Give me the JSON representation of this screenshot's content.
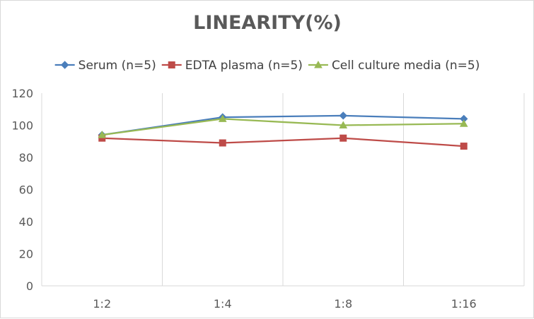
{
  "chart_data": {
    "type": "line",
    "title": "LINEARITY(%)",
    "xlabel": "",
    "ylabel": "",
    "categories": [
      "1:2",
      "1:4",
      "1:8",
      "1:16"
    ],
    "ylim": [
      0,
      120
    ],
    "yticks": [
      0,
      20,
      40,
      60,
      80,
      100,
      120
    ],
    "grid": "vertical",
    "legend_position": "top",
    "series": [
      {
        "name": "Serum (n=5)",
        "values": [
          94,
          105,
          106,
          104
        ],
        "color": "#4a7ebb",
        "marker": "diamond"
      },
      {
        "name": "EDTA plasma (n=5)",
        "values": [
          92,
          89,
          92,
          87
        ],
        "color": "#be4b48",
        "marker": "square"
      },
      {
        "name": "Cell culture media (n=5)",
        "values": [
          94,
          104,
          100,
          101
        ],
        "color": "#98b954",
        "marker": "triangle"
      }
    ]
  }
}
